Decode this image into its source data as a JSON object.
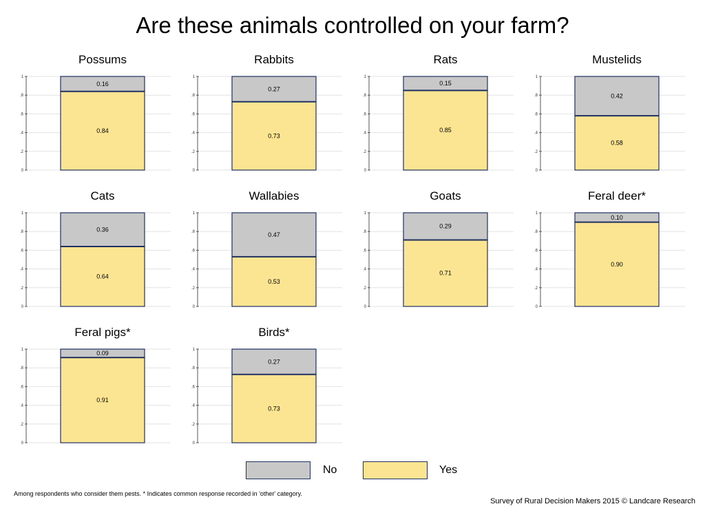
{
  "title": "Are these animals controlled on your farm?",
  "colors": {
    "no": "#c8c8c8",
    "yes": "#fce592",
    "border": "#1f3060",
    "grid": "#e2e2e2"
  },
  "legend": {
    "no": "No",
    "yes": "Yes"
  },
  "footnote": "Among respondents who consider them pests. * Indicates common response recorded in 'other' category.",
  "credit": "Survey of Rural Decision Makers 2015 © Landcare Research",
  "chart_data": {
    "type": "bar",
    "stacked": true,
    "ylim": [
      0,
      1
    ],
    "yticks": [
      "0",
      ".2",
      ".4",
      ".6",
      ".8",
      "1"
    ],
    "grid": true,
    "legend_position": "bottom",
    "series_order": [
      "yes",
      "no"
    ],
    "panels": [
      {
        "title": "Possums",
        "yes": 0.84,
        "no": 0.16,
        "yes_label": "0.84",
        "no_label": "0.16"
      },
      {
        "title": "Rabbits",
        "yes": 0.73,
        "no": 0.27,
        "yes_label": "0.73",
        "no_label": "0.27"
      },
      {
        "title": "Rats",
        "yes": 0.85,
        "no": 0.15,
        "yes_label": "0.85",
        "no_label": "0.15"
      },
      {
        "title": "Mustelids",
        "yes": 0.58,
        "no": 0.42,
        "yes_label": "0.58",
        "no_label": "0.42"
      },
      {
        "title": "Cats",
        "yes": 0.64,
        "no": 0.36,
        "yes_label": "0.64",
        "no_label": "0.36"
      },
      {
        "title": "Wallabies",
        "yes": 0.53,
        "no": 0.47,
        "yes_label": "0.53",
        "no_label": "0.47"
      },
      {
        "title": "Goats",
        "yes": 0.71,
        "no": 0.29,
        "yes_label": "0.71",
        "no_label": "0.29"
      },
      {
        "title": "Feral deer*",
        "yes": 0.9,
        "no": 0.1,
        "yes_label": "0.90",
        "no_label": "0.10"
      },
      {
        "title": "Feral pigs*",
        "yes": 0.91,
        "no": 0.09,
        "yes_label": "0.91",
        "no_label": "0.09"
      },
      {
        "title": "Birds*",
        "yes": 0.73,
        "no": 0.27,
        "yes_label": "0.73",
        "no_label": "0.27"
      }
    ]
  }
}
